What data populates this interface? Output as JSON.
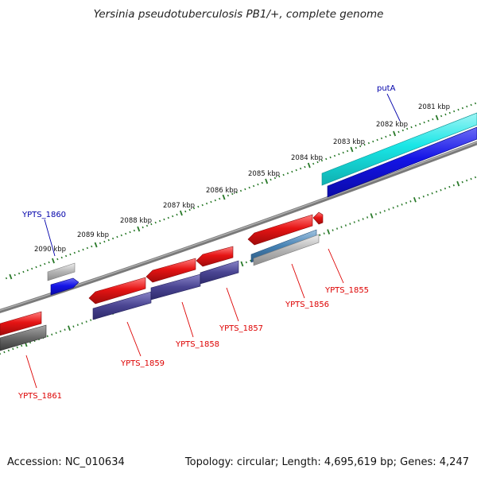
{
  "title": "Yersinia pseudotuberculosis PB1/+, complete genome",
  "footer": {
    "accession": "Accession: NC_010634",
    "summary": "Topology: circular; Length: 4,695,619 bp; Genes: 4,247"
  },
  "colors": {
    "cds_forward": "#1414e6",
    "cds_reverse": "#e61414",
    "other_feature_forward": "#19e6e6",
    "other_feature_reverse": "#4682b4",
    "pseudo_forward": "#b4b4b4",
    "pseudo_reverse": "#696969",
    "tick": "#2a7a2a",
    "label_forward": "#0000aa",
    "label_reverse": "#dd0000"
  },
  "scale_labels": [
    "2081 kbp",
    "2082 kbp",
    "2083 kbp",
    "2084 kbp",
    "2085 kbp",
    "2086 kbp",
    "2087 kbp",
    "2088 kbp",
    "2089 kbp",
    "2090 kbp"
  ],
  "gene_labels": {
    "putA": "putA",
    "ypts1860": "YPTS_1860",
    "ypts1861": "YPTS_1861",
    "ypts1859": "YPTS_1859",
    "ypts1858": "YPTS_1858",
    "ypts1857": "YPTS_1857",
    "ypts1856": "YPTS_1856",
    "ypts1855": "YPTS_1855"
  }
}
